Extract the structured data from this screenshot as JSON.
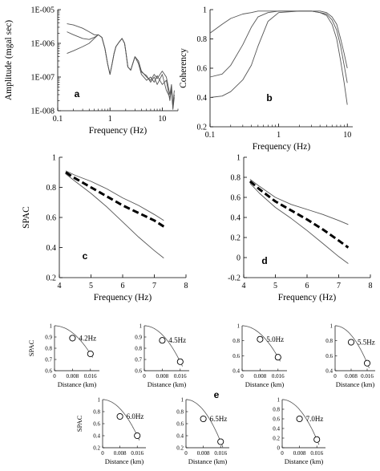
{
  "chart_data": [
    {
      "panel_label": "a",
      "type": "line",
      "xlabel": "Frequency (Hz)",
      "ylabel": "Amplitude (mgal sec)",
      "x_scale": "log",
      "y_scale": "log",
      "xlim": [
        0.1,
        20
      ],
      "ylim": [
        1e-08,
        1e-05
      ],
      "x_ticks": [
        "0.1",
        "1",
        "10"
      ],
      "y_ticks": [
        "1E-008",
        "1E-007",
        "1E-006",
        "1E-005"
      ],
      "series": [
        {
          "x": [
            0.15,
            0.2,
            0.3,
            0.4,
            0.5,
            0.6,
            0.7,
            0.8,
            0.9,
            1.0,
            1.1,
            1.2,
            1.3,
            1.5,
            1.7,
            1.9,
            2.0,
            2.2,
            2.5,
            3.0,
            3.5,
            4,
            5,
            6,
            7,
            8,
            10,
            12,
            14,
            15,
            16,
            17
          ],
          "y": [
            3.8e-06,
            3.5e-06,
            2.8e-06,
            2.2e-06,
            1.8e-06,
            1.8e-06,
            1.5e-06,
            7e-07,
            2.5e-07,
            1.2e-07,
            2.5e-07,
            5e-07,
            8e-07,
            1.1e-06,
            1.4e-06,
            1e-06,
            6e-07,
            2e-07,
            1.6e-07,
            4e-07,
            3e-07,
            1.5e-07,
            1e-07,
            8e-08,
            1.2e-07,
            9e-08,
            1.5e-07,
            1e-07,
            3e-08,
            6e-08,
            1.5e-08,
            4e-08
          ]
        },
        {
          "x": [
            0.15,
            0.2,
            0.3,
            0.4,
            0.5,
            0.6,
            0.7,
            0.8,
            0.9,
            1.0,
            1.1,
            1.2,
            1.3,
            1.5,
            1.7,
            1.9,
            2.0,
            2.2,
            2.5,
            3.0,
            3.5,
            4,
            5,
            6,
            7,
            8,
            10,
            12,
            14,
            15,
            16,
            17
          ],
          "y": [
            2.2e-06,
            1.8e-06,
            1.4e-06,
            1.3e-06,
            1.5e-06,
            1.8e-06,
            1.5e-06,
            7e-07,
            2.5e-07,
            1.2e-07,
            2.5e-07,
            5e-07,
            8e-07,
            1.1e-06,
            1.4e-06,
            1e-06,
            6e-07,
            2e-07,
            1.6e-07,
            4e-07,
            2.5e-07,
            1.2e-07,
            8e-08,
            1e-07,
            7e-08,
            1.1e-07,
            6e-08,
            8e-08,
            2e-08,
            5e-08,
            1.2e-08,
            3e-08
          ]
        },
        {
          "x": [
            0.15,
            0.2,
            0.3,
            0.4,
            0.5,
            0.6,
            0.7,
            0.8,
            0.9,
            1.0,
            1.1,
            1.2,
            1.3,
            1.5,
            1.7,
            1.9,
            2.0,
            2.2,
            2.5,
            3.0,
            3.5,
            4,
            5,
            6,
            7,
            8,
            10,
            12,
            14,
            15,
            16,
            17
          ],
          "y": [
            5e-07,
            6e-07,
            8e-07,
            1e-06,
            1.4e-06,
            1.8e-06,
            1.5e-06,
            7e-07,
            2.5e-07,
            1.2e-07,
            2.5e-07,
            5e-07,
            8e-07,
            1.1e-06,
            1.4e-06,
            1e-06,
            6e-07,
            2e-07,
            1.6e-07,
            4e-07,
            3e-07,
            1.4e-07,
            1.1e-07,
            7e-08,
            1e-07,
            6e-08,
            1.2e-07,
            4e-08,
            2.5e-08,
            4e-08,
            1.1e-08,
            2.5e-08
          ]
        }
      ]
    },
    {
      "panel_label": "b",
      "type": "line",
      "xlabel": "Frequency (Hz)",
      "ylabel": "Coherency",
      "x_scale": "log",
      "xlim": [
        0.1,
        12
      ],
      "ylim": [
        0.2,
        1
      ],
      "x_ticks": [
        "0.1",
        "1",
        "10"
      ],
      "y_ticks": [
        "0.2",
        "0.4",
        "0.6",
        "0.8",
        "1"
      ],
      "series": [
        {
          "x": [
            0.1,
            0.15,
            0.2,
            0.3,
            0.4,
            0.5,
            0.7,
            1,
            2,
            3,
            4,
            5,
            6,
            7,
            8,
            9,
            10
          ],
          "y": [
            0.84,
            0.9,
            0.94,
            0.97,
            0.98,
            0.99,
            0.99,
            0.99,
            0.99,
            0.99,
            0.99,
            0.98,
            0.95,
            0.9,
            0.8,
            0.7,
            0.6
          ]
        },
        {
          "x": [
            0.1,
            0.15,
            0.2,
            0.3,
            0.4,
            0.5,
            0.7,
            1,
            2,
            3,
            4,
            5,
            6,
            7,
            8,
            9,
            10
          ],
          "y": [
            0.54,
            0.56,
            0.62,
            0.76,
            0.88,
            0.95,
            0.98,
            0.99,
            0.99,
            0.99,
            0.98,
            0.97,
            0.93,
            0.86,
            0.75,
            0.62,
            0.5
          ]
        },
        {
          "x": [
            0.1,
            0.15,
            0.2,
            0.3,
            0.4,
            0.5,
            0.7,
            1,
            2,
            3,
            4,
            5,
            6,
            7,
            8,
            9,
            10
          ],
          "y": [
            0.4,
            0.41,
            0.44,
            0.52,
            0.62,
            0.75,
            0.92,
            0.98,
            0.99,
            0.99,
            0.98,
            0.96,
            0.9,
            0.8,
            0.65,
            0.5,
            0.35
          ]
        }
      ]
    },
    {
      "panel_label": "c",
      "type": "line",
      "xlabel": "Frequency (Hz)",
      "ylabel": "SPAC",
      "xlim": [
        4,
        8
      ],
      "ylim": [
        0.2,
        1
      ],
      "x_ticks": [
        "4",
        "5",
        "6",
        "7",
        "8"
      ],
      "y_ticks": [
        "0.2",
        "0.4",
        "0.6",
        "0.8",
        "1"
      ],
      "series": [
        {
          "x": [
            4.2,
            4.5,
            5.0,
            5.5,
            6.0,
            6.5,
            7.0,
            7.3
          ],
          "y": [
            0.91,
            0.88,
            0.84,
            0.79,
            0.73,
            0.68,
            0.62,
            0.58
          ]
        },
        {
          "x": [
            4.2,
            4.5,
            5.0,
            5.5,
            6.0,
            6.5,
            7.0,
            7.3
          ],
          "y": [
            0.9,
            0.86,
            0.8,
            0.74,
            0.68,
            0.63,
            0.58,
            0.54
          ],
          "style": "dashed"
        },
        {
          "x": [
            4.2,
            4.5,
            5.0,
            5.5,
            6.0,
            6.5,
            7.0,
            7.3
          ],
          "y": [
            0.89,
            0.84,
            0.76,
            0.67,
            0.57,
            0.47,
            0.38,
            0.33
          ]
        }
      ]
    },
    {
      "panel_label": "d",
      "type": "line",
      "xlabel": "Frequency (Hz)",
      "xlim": [
        4,
        8
      ],
      "ylim": [
        -0.2,
        1
      ],
      "x_ticks": [
        "4",
        "5",
        "6",
        "7",
        "8"
      ],
      "y_ticks": [
        "-0.2",
        "0",
        "0.2",
        "0.4",
        "0.6",
        "0.8",
        "1"
      ],
      "series": [
        {
          "x": [
            4.2,
            4.5,
            5.0,
            5.5,
            6.0,
            6.5,
            7.0,
            7.3
          ],
          "y": [
            0.78,
            0.71,
            0.6,
            0.53,
            0.48,
            0.43,
            0.37,
            0.33
          ]
        },
        {
          "x": [
            4.2,
            4.5,
            5.0,
            5.5,
            6.0,
            6.5,
            7.0,
            7.3
          ],
          "y": [
            0.76,
            0.68,
            0.56,
            0.47,
            0.38,
            0.28,
            0.17,
            0.1
          ],
          "style": "dashed"
        },
        {
          "x": [
            4.2,
            4.5,
            5.0,
            5.5,
            6.0,
            6.5,
            7.0,
            7.3
          ],
          "y": [
            0.74,
            0.64,
            0.5,
            0.39,
            0.27,
            0.14,
            0.01,
            -0.06
          ]
        }
      ]
    },
    {
      "panel_label": "e",
      "type": "scatter",
      "xlabel": "Distance (km)",
      "ylabel": "SPAC",
      "xlim": [
        0,
        0.02
      ],
      "x_ticks": [
        "0",
        "0.008",
        "0.016"
      ],
      "subplots": [
        {
          "annotation": "4.2Hz",
          "ylim": [
            0.6,
            1
          ],
          "y_ticks": [
            "0.6",
            "0.7",
            "0.8",
            "0.9",
            "1"
          ],
          "points": [
            [
              0.008,
              0.89
            ],
            [
              0.016,
              0.75
            ]
          ]
        },
        {
          "annotation": "4.5Hz",
          "ylim": [
            0.6,
            1
          ],
          "y_ticks": [
            "0.6",
            "0.7",
            "0.8",
            "0.9",
            "1"
          ],
          "points": [
            [
              0.008,
              0.87
            ],
            [
              0.016,
              0.68
            ]
          ]
        },
        {
          "annotation": "5.0Hz",
          "ylim": [
            0.4,
            1
          ],
          "y_ticks": [
            "0.4",
            "0.6",
            "0.8",
            "1"
          ],
          "points": [
            [
              0.008,
              0.82
            ],
            [
              0.016,
              0.58
            ]
          ]
        },
        {
          "annotation": "5.5Hz",
          "ylim": [
            0.4,
            1
          ],
          "y_ticks": [
            "0.4",
            "0.6",
            "0.8",
            "1"
          ],
          "points": [
            [
              0.008,
              0.78
            ],
            [
              0.016,
              0.5
            ]
          ]
        },
        {
          "annotation": "6.0Hz",
          "ylim": [
            0.2,
            1
          ],
          "y_ticks": [
            "0.2",
            "0.4",
            "0.6",
            "0.8",
            "1"
          ],
          "points": [
            [
              0.008,
              0.72
            ],
            [
              0.016,
              0.4
            ]
          ]
        },
        {
          "annotation": "6.5Hz",
          "ylim": [
            0.2,
            1
          ],
          "y_ticks": [
            "0.2",
            "0.4",
            "0.6",
            "0.8",
            "1"
          ],
          "points": [
            [
              0.008,
              0.68
            ],
            [
              0.016,
              0.3
            ]
          ]
        },
        {
          "annotation": "7.0Hz",
          "ylim": [
            0,
            1
          ],
          "y_ticks": [
            "0",
            "0.2",
            "0.4",
            "0.6",
            "0.8",
            "1"
          ],
          "points": [
            [
              0.008,
              0.6
            ],
            [
              0.016,
              0.17
            ]
          ]
        }
      ]
    }
  ]
}
